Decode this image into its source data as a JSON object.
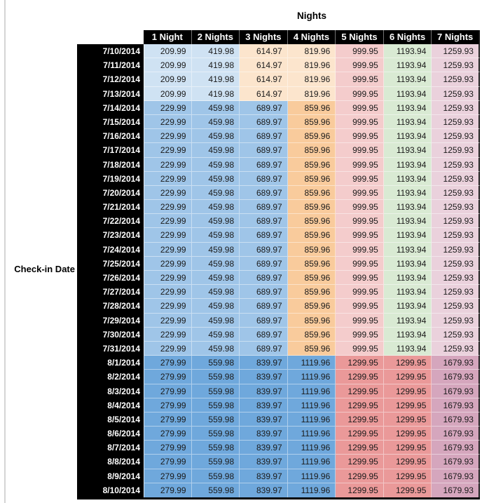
{
  "chart_data": {
    "type": "table",
    "title": "Nights",
    "row_axis_label": "Check-in Date",
    "columns": [
      "1 Night",
      "2 Nights",
      "3 Nights",
      "4 Nights",
      "5 Nights",
      "6 Nights",
      "7 Nights"
    ],
    "bands": [
      {
        "dates": [
          "7/10/2014",
          "7/11/2014",
          "7/12/2014",
          "7/13/2014"
        ],
        "values": [
          "209.99",
          "419.98",
          "614.97",
          "819.96",
          "999.95",
          "1193.94",
          "1259.93"
        ],
        "colors": [
          "blue_light",
          "blue_light",
          "orange_light",
          "orange_light",
          "red_light",
          "green_light",
          "magenta_light"
        ]
      },
      {
        "dates": [
          "7/14/2014",
          "7/15/2014",
          "7/16/2014",
          "7/17/2014",
          "7/18/2014",
          "7/19/2014",
          "7/20/2014",
          "7/21/2014",
          "7/22/2014",
          "7/23/2014",
          "7/24/2014",
          "7/25/2014",
          "7/26/2014",
          "7/27/2014",
          "7/28/2014",
          "7/29/2014",
          "7/30/2014",
          "7/31/2014"
        ],
        "values": [
          "229.99",
          "459.98",
          "689.97",
          "859.96",
          "999.95",
          "1193.94",
          "1259.93"
        ],
        "colors": [
          "blue_medium",
          "blue_medium",
          "blue_medium",
          "orange_medium",
          "red_light",
          "green_light",
          "magenta_light"
        ]
      },
      {
        "dates": [
          "8/1/2014",
          "8/2/2014",
          "8/3/2014",
          "8/4/2014",
          "8/5/2014",
          "8/6/2014",
          "8/7/2014",
          "8/8/2014",
          "8/9/2014",
          "8/10/2014"
        ],
        "values": [
          "279.99",
          "559.98",
          "839.97",
          "1119.96",
          "1299.95",
          "1299.95",
          "1679.93"
        ],
        "colors": [
          "blue_dark",
          "blue_dark",
          "blue_dark",
          "blue_dark",
          "red_medium",
          "red_medium",
          "magenta_medium"
        ]
      }
    ],
    "palette": {
      "blue_light": "#cfe2f3",
      "blue_medium": "#9fc5e8",
      "blue_dark": "#6fa8dc",
      "orange_light": "#fce5cd",
      "orange_medium": "#f9cb9c",
      "red_light": "#f4cccc",
      "red_medium": "#ea9999",
      "green_light": "#d9ead3",
      "magenta_light": "#ead1dc",
      "magenta_medium": "#d5a6bd",
      "header_bg": "#000000",
      "header_text": "#ffffff",
      "gridline": "#d4d4d4"
    }
  }
}
